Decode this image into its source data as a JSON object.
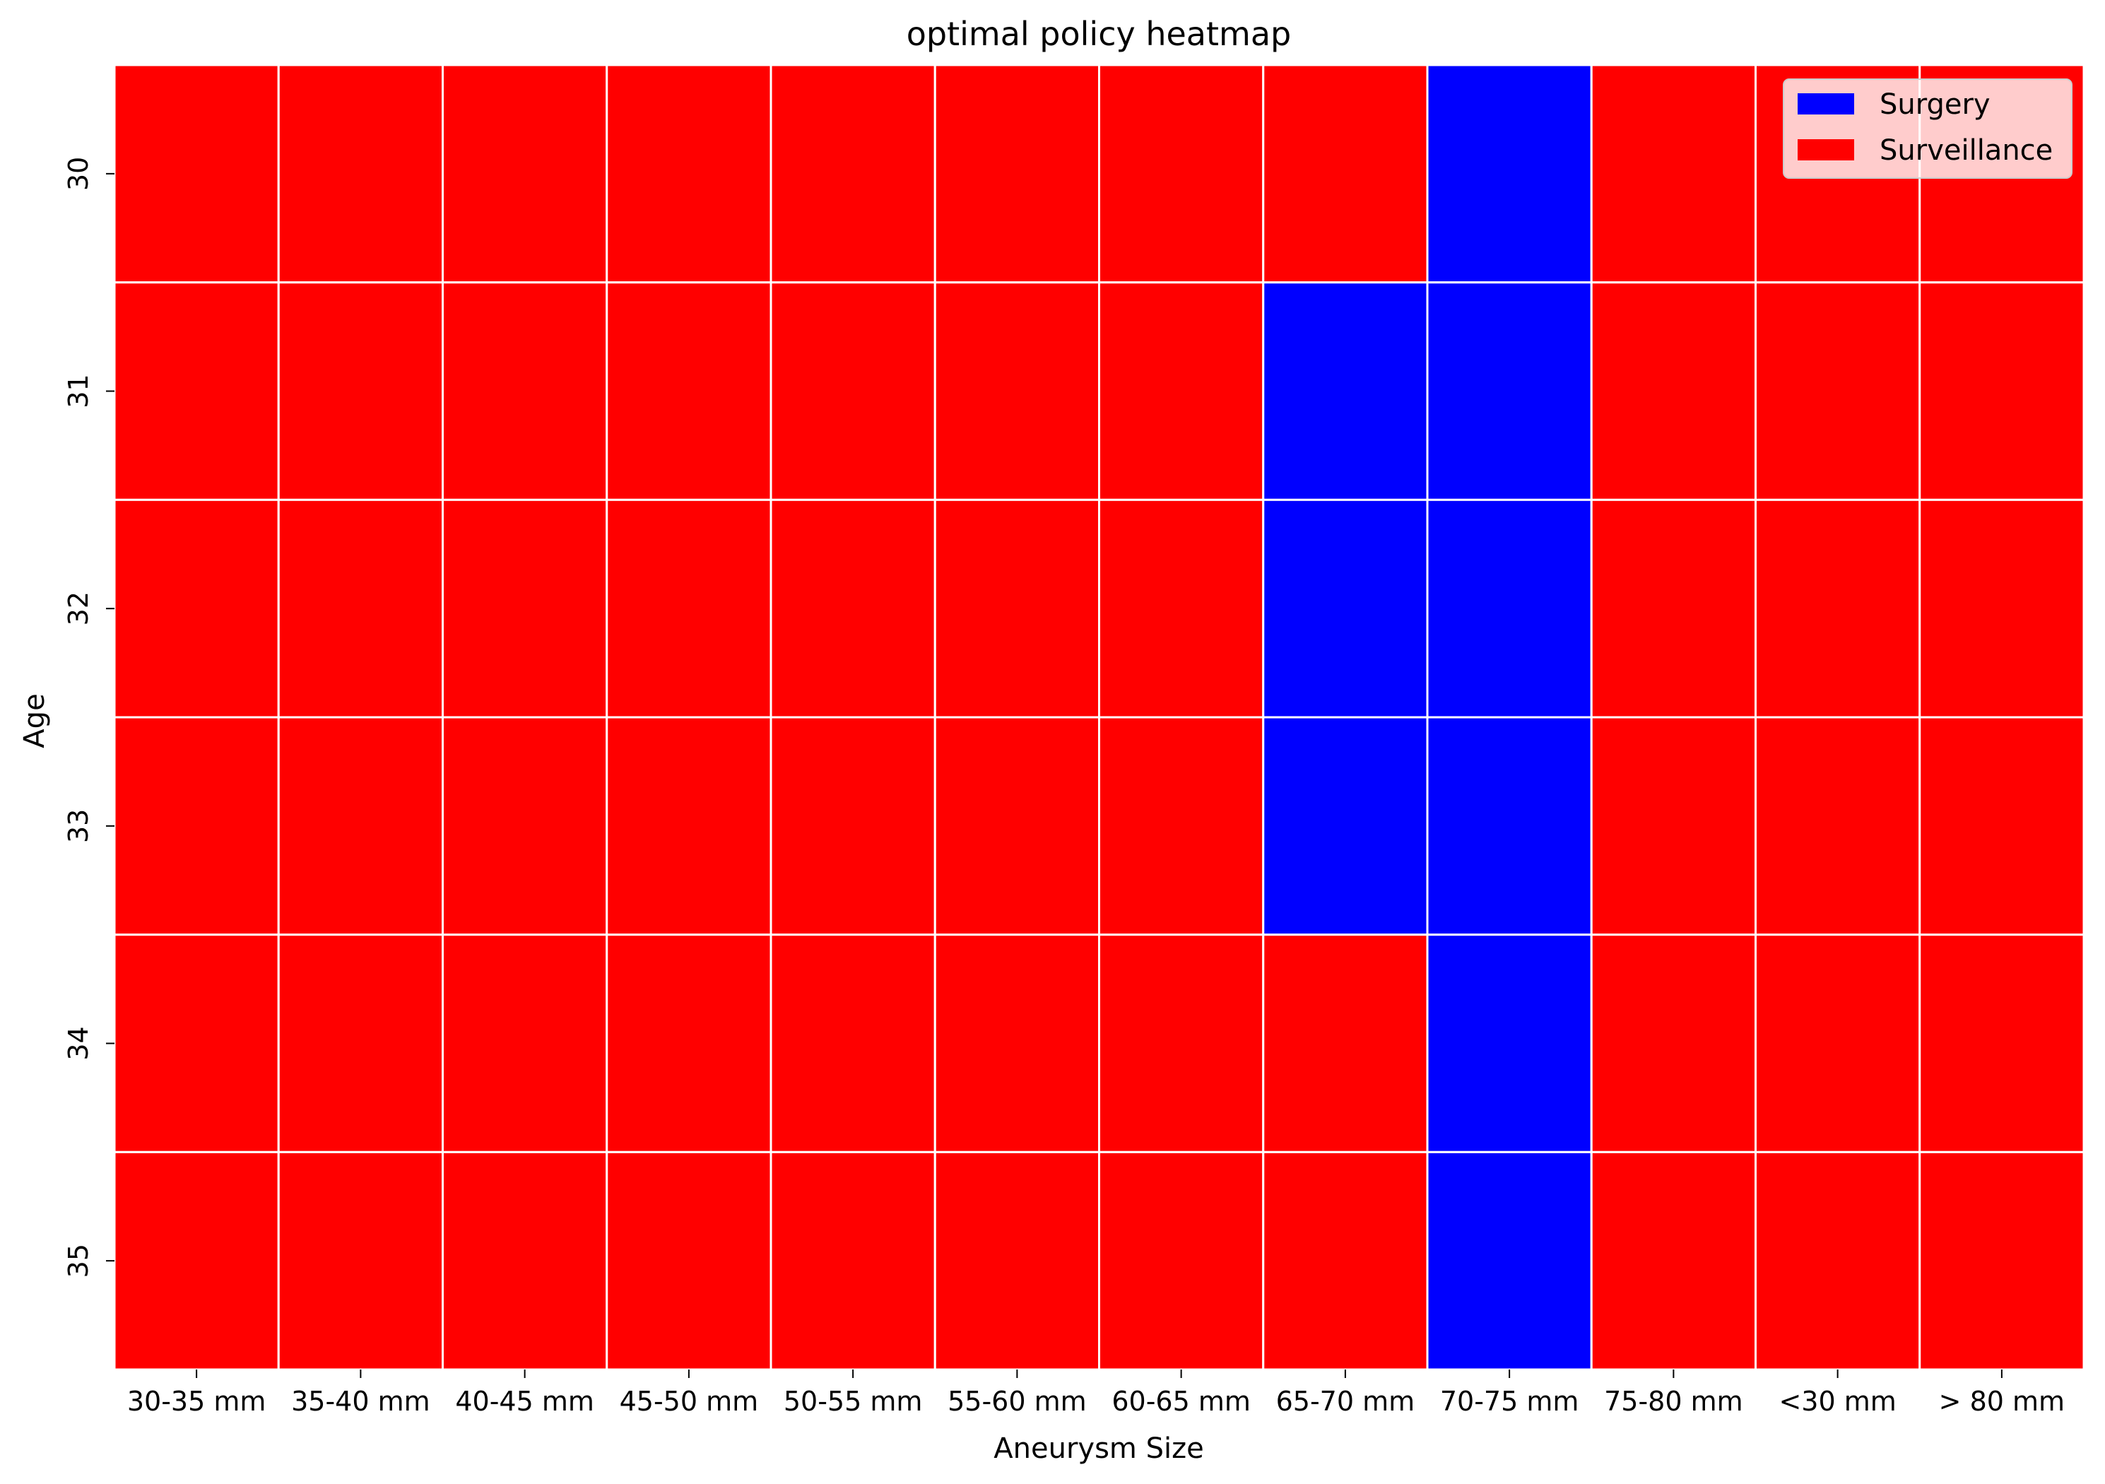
{
  "chart_data": {
    "type": "heatmap",
    "title": "optimal policy heatmap",
    "xlabel": "Aneurysm Size",
    "ylabel": "Age",
    "x_categories": [
      "30-35 mm",
      "35-40 mm",
      "40-45 mm",
      "45-50 mm",
      "50-55 mm",
      "55-60 mm",
      "60-65 mm",
      "65-70 mm",
      "70-75 mm",
      "75-80 mm",
      "<30 mm",
      "> 80 mm"
    ],
    "y_categories": [
      "30",
      "31",
      "32",
      "33",
      "34",
      "35"
    ],
    "values": [
      [
        "Surveillance",
        "Surveillance",
        "Surveillance",
        "Surveillance",
        "Surveillance",
        "Surveillance",
        "Surveillance",
        "Surveillance",
        "Surgery",
        "Surveillance",
        "Surveillance",
        "Surveillance"
      ],
      [
        "Surveillance",
        "Surveillance",
        "Surveillance",
        "Surveillance",
        "Surveillance",
        "Surveillance",
        "Surveillance",
        "Surgery",
        "Surgery",
        "Surveillance",
        "Surveillance",
        "Surveillance"
      ],
      [
        "Surveillance",
        "Surveillance",
        "Surveillance",
        "Surveillance",
        "Surveillance",
        "Surveillance",
        "Surveillance",
        "Surgery",
        "Surgery",
        "Surveillance",
        "Surveillance",
        "Surveillance"
      ],
      [
        "Surveillance",
        "Surveillance",
        "Surveillance",
        "Surveillance",
        "Surveillance",
        "Surveillance",
        "Surveillance",
        "Surgery",
        "Surgery",
        "Surveillance",
        "Surveillance",
        "Surveillance"
      ],
      [
        "Surveillance",
        "Surveillance",
        "Surveillance",
        "Surveillance",
        "Surveillance",
        "Surveillance",
        "Surveillance",
        "Surveillance",
        "Surgery",
        "Surveillance",
        "Surveillance",
        "Surveillance"
      ],
      [
        "Surveillance",
        "Surveillance",
        "Surveillance",
        "Surveillance",
        "Surveillance",
        "Surveillance",
        "Surveillance",
        "Surveillance",
        "Surgery",
        "Surveillance",
        "Surveillance",
        "Surveillance"
      ]
    ],
    "legend": {
      "placement": "top-right",
      "entries": [
        {
          "label": "Surgery",
          "color": "#0000ff"
        },
        {
          "label": "Surveillance",
          "color": "#ff0000"
        }
      ]
    },
    "grid": true,
    "cell_border_color": "#ffffff"
  }
}
